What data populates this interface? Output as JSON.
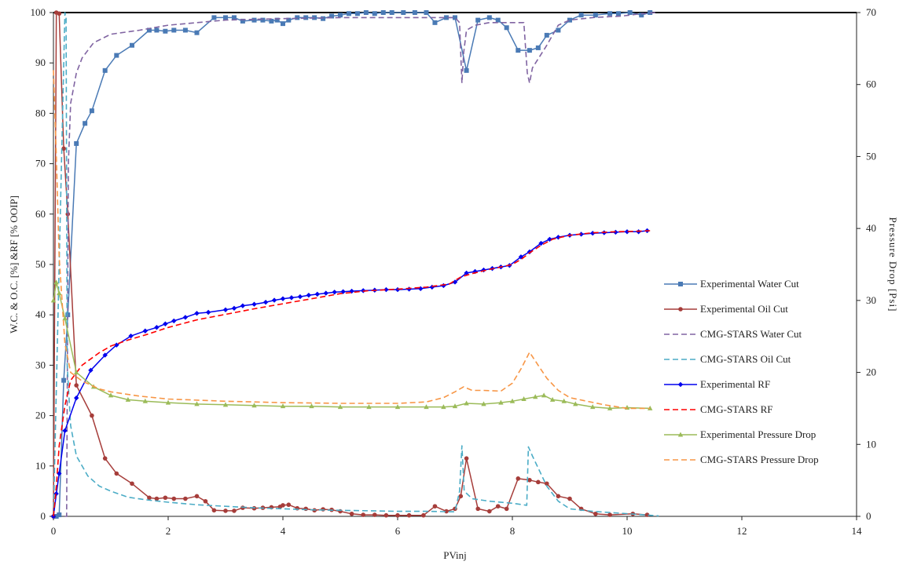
{
  "chart_data": {
    "type": "line",
    "title": "",
    "xlabel": "PVinj",
    "ylabel_left": "W.C. & O.C. [%] &RF [% OOIP]",
    "ylabel_right": "Pressure Drop [Psi]",
    "xlim": [
      0,
      14
    ],
    "ylim_left": [
      0,
      100
    ],
    "ylim_right": [
      0,
      70
    ],
    "x_ticks": [
      "0",
      "2",
      "4",
      "6",
      "8",
      "10",
      "12",
      "14"
    ],
    "y_left_ticks": [
      "0",
      "10",
      "20",
      "30",
      "40",
      "50",
      "60",
      "70",
      "80",
      "90",
      "100"
    ],
    "y_right_ticks": [
      "0",
      "10",
      "20",
      "30",
      "40",
      "50",
      "60",
      "70"
    ],
    "grid": false,
    "legend_position": "right",
    "series": [
      {
        "name": "Experimental Water Cut",
        "axis": "left",
        "style": "solid",
        "marker": "square",
        "color": "#4a7ab5",
        "x": [
          0.05,
          0.1,
          0.18,
          0.25,
          0.4,
          0.55,
          0.67,
          0.9,
          1.1,
          1.37,
          1.67,
          1.8,
          1.95,
          2.1,
          2.3,
          2.5,
          2.8,
          3.0,
          3.15,
          3.3,
          3.5,
          3.65,
          3.8,
          3.9,
          4.0,
          4.1,
          4.25,
          4.4,
          4.55,
          4.7,
          4.85,
          5.0,
          5.15,
          5.3,
          5.45,
          5.6,
          5.75,
          5.9,
          6.1,
          6.3,
          6.5,
          6.65,
          6.85,
          7.0,
          7.2,
          7.4,
          7.6,
          7.75,
          7.9,
          8.1,
          8.3,
          8.45,
          8.6,
          8.8,
          9.0,
          9.2,
          9.45,
          9.7,
          9.85,
          10.05,
          10.25,
          10.4
        ],
        "y": [
          0,
          0.3,
          27,
          40,
          74,
          78,
          80.5,
          88.5,
          91.5,
          93.5,
          96.5,
          96.5,
          96.3,
          96.5,
          96.5,
          96.0,
          99.0,
          99.0,
          99.0,
          98.3,
          98.5,
          98.5,
          98.3,
          98.5,
          97.8,
          98.5,
          99.0,
          99.0,
          99.0,
          98.8,
          99.3,
          99.5,
          99.8,
          99.8,
          100,
          99.8,
          100,
          100,
          100,
          100,
          100,
          98.0,
          99.0,
          99.0,
          88.5,
          98.5,
          99.0,
          98.5,
          97.0,
          92.5,
          92.5,
          93.0,
          95.5,
          96.5,
          98.5,
          99.5,
          99.5,
          99.8,
          99.8,
          100,
          99.5,
          100
        ]
      },
      {
        "name": "Experimental Oil Cut",
        "axis": "left",
        "style": "solid",
        "marker": "circle",
        "color": "#a63d3a",
        "x": [
          0.0,
          0.05,
          0.1,
          0.18,
          0.25,
          0.4,
          0.67,
          0.9,
          1.1,
          1.37,
          1.67,
          1.8,
          1.95,
          2.1,
          2.3,
          2.5,
          2.65,
          2.8,
          3.0,
          3.15,
          3.3,
          3.5,
          3.65,
          3.8,
          3.95,
          4.0,
          4.1,
          4.25,
          4.4,
          4.55,
          4.7,
          4.85,
          5.0,
          5.2,
          5.4,
          5.6,
          5.8,
          6.0,
          6.2,
          6.45,
          6.65,
          6.85,
          7.0,
          7.1,
          7.2,
          7.4,
          7.6,
          7.75,
          7.9,
          8.1,
          8.3,
          8.45,
          8.6,
          8.8,
          9.0,
          9.2,
          9.45,
          9.7,
          10.1,
          10.35
        ],
        "y": [
          0,
          100,
          99.8,
          73,
          60,
          26,
          20,
          11.5,
          8.5,
          6.5,
          3.7,
          3.5,
          3.7,
          3.5,
          3.5,
          4.0,
          3.0,
          1.2,
          1.1,
          1.1,
          1.7,
          1.6,
          1.7,
          1.8,
          1.9,
          2.2,
          2.3,
          1.6,
          1.5,
          1.2,
          1.4,
          1.3,
          1.0,
          0.5,
          0.3,
          0.3,
          0.2,
          0.2,
          0.2,
          0.2,
          2.0,
          1.0,
          1.5,
          4.0,
          11.5,
          1.5,
          1.0,
          2.0,
          1.5,
          7.5,
          7.2,
          6.8,
          6.5,
          4.0,
          3.5,
          1.5,
          0.5,
          0.3,
          0.5,
          0.3
        ]
      },
      {
        "name": "CMG-STARS Water Cut",
        "axis": "left",
        "style": "dashed",
        "marker": "none",
        "color": "#8064a2",
        "x": [
          0.2,
          0.23,
          0.26,
          0.3,
          0.4,
          0.5,
          0.7,
          1.0,
          1.5,
          2.0,
          3.0,
          4.0,
          5.0,
          6.0,
          7.0,
          7.08,
          7.12,
          7.15,
          7.2,
          7.35,
          7.6,
          8.0,
          8.2,
          8.26,
          8.3,
          8.35,
          8.6,
          8.8,
          9.0,
          9.4,
          9.9,
          10.2,
          10.5
        ],
        "y": [
          0,
          0,
          70,
          82,
          88,
          91,
          94,
          95.7,
          96.5,
          97.5,
          98.5,
          98.8,
          99.0,
          99.0,
          99.0,
          98.0,
          86,
          92,
          96.5,
          97.5,
          98.0,
          98.0,
          98.0,
          88,
          86,
          89,
          93.5,
          97.5,
          98.5,
          99.0,
          99.3,
          99.7,
          100
        ]
      },
      {
        "name": "CMG-STARS Oil Cut",
        "axis": "left",
        "style": "dashed",
        "marker": "none",
        "color": "#4bacc6",
        "x": [
          0.0,
          0.2,
          0.22,
          0.24,
          0.3,
          0.4,
          0.6,
          0.8,
          1.0,
          1.3,
          1.6,
          2.0,
          2.5,
          3.0,
          3.5,
          4.0,
          4.5,
          5.0,
          5.5,
          6.0,
          6.5,
          7.0,
          7.08,
          7.12,
          7.16,
          7.3,
          7.6,
          8.0,
          8.25,
          8.28,
          8.35,
          8.6,
          8.8,
          9.0,
          9.4,
          9.9,
          10.3,
          10.55
        ],
        "y": [
          0,
          100,
          99,
          30,
          18,
          12,
          8,
          6,
          5,
          3.8,
          3.3,
          2.8,
          2.3,
          2.0,
          1.7,
          1.5,
          1.3,
          1.2,
          1.1,
          1.0,
          1.0,
          0.9,
          5,
          14,
          5,
          3.5,
          3,
          2.6,
          2.2,
          13.8,
          12,
          6,
          3,
          1.5,
          1.0,
          0.6,
          0.3,
          0.1
        ]
      },
      {
        "name": "Experimental RF",
        "axis": "left",
        "style": "solid",
        "marker": "diamond",
        "color": "#0000ee",
        "x": [
          0,
          0.05,
          0.1,
          0.2,
          0.4,
          0.65,
          0.9,
          1.1,
          1.35,
          1.6,
          1.8,
          1.95,
          2.1,
          2.3,
          2.5,
          2.7,
          3.0,
          3.15,
          3.3,
          3.5,
          3.7,
          3.85,
          4.0,
          4.15,
          4.3,
          4.45,
          4.6,
          4.75,
          4.9,
          5.05,
          5.2,
          5.4,
          5.6,
          5.8,
          6.0,
          6.2,
          6.4,
          6.6,
          6.8,
          7.0,
          7.2,
          7.35,
          7.5,
          7.65,
          7.8,
          7.95,
          8.15,
          8.3,
          8.5,
          8.65,
          8.8,
          9.0,
          9.2,
          9.4,
          9.6,
          9.8,
          10.0,
          10.2,
          10.35
        ],
        "y": [
          0,
          4.5,
          8.5,
          17,
          23.5,
          29,
          32,
          34,
          35.8,
          36.8,
          37.5,
          38.2,
          38.8,
          39.5,
          40.3,
          40.5,
          41.0,
          41.3,
          41.8,
          42.1,
          42.5,
          42.9,
          43.2,
          43.4,
          43.6,
          43.9,
          44.1,
          44.3,
          44.5,
          44.6,
          44.7,
          44.8,
          44.9,
          45.0,
          45.0,
          45.1,
          45.2,
          45.5,
          45.8,
          46.5,
          48.3,
          48.6,
          48.9,
          49.2,
          49.5,
          49.8,
          51.5,
          52.5,
          54.2,
          55,
          55.4,
          55.8,
          56.0,
          56.2,
          56.3,
          56.4,
          56.5,
          56.5,
          56.7
        ]
      },
      {
        "name": "CMG-STARS RF",
        "axis": "left",
        "style": "dashed",
        "marker": "none",
        "color": "#ff0000",
        "x": [
          0,
          0.05,
          0.1,
          0.2,
          0.3,
          0.5,
          0.8,
          1.0,
          1.3,
          1.6,
          2.0,
          2.5,
          3.0,
          3.5,
          4.0,
          4.5,
          5.0,
          5.5,
          6.0,
          6.5,
          6.9,
          7.0,
          7.1,
          7.3,
          7.6,
          8.0,
          8.15,
          8.3,
          8.5,
          8.7,
          9.0,
          9.4,
          9.8,
          10.2,
          10.4
        ],
        "y": [
          0,
          6,
          14,
          22,
          27,
          30,
          32.5,
          33.8,
          35.0,
          36.0,
          37.5,
          39.0,
          40.1,
          41.2,
          42.2,
          43.2,
          44.2,
          44.8,
          45.1,
          45.5,
          46.1,
          46.8,
          47.5,
          48.2,
          49.0,
          50.0,
          51.0,
          52.3,
          53.8,
          55.0,
          55.8,
          56.3,
          56.5,
          56.6,
          56.7
        ]
      },
      {
        "name": "Experimental Pressure Drop",
        "axis": "right",
        "style": "solid",
        "marker": "triangle",
        "color": "#9bbb59",
        "x": [
          0,
          0.05,
          0.1,
          0.2,
          0.4,
          0.7,
          1.0,
          1.3,
          1.6,
          2.0,
          2.5,
          3.0,
          3.5,
          4.0,
          4.5,
          5.0,
          5.5,
          6.0,
          6.5,
          6.8,
          7.0,
          7.2,
          7.5,
          7.8,
          8.0,
          8.2,
          8.4,
          8.55,
          8.7,
          8.9,
          9.1,
          9.4,
          9.7,
          10.0,
          10.4
        ],
        "y": [
          30,
          32.5,
          31,
          27.5,
          20,
          18.0,
          16.8,
          16.2,
          16.0,
          15.8,
          15.6,
          15.5,
          15.4,
          15.3,
          15.3,
          15.2,
          15.2,
          15.2,
          15.2,
          15.2,
          15.3,
          15.7,
          15.6,
          15.8,
          16.0,
          16.3,
          16.6,
          16.8,
          16.2,
          16.0,
          15.6,
          15.2,
          15.0,
          15.1,
          15.0
        ]
      },
      {
        "name": "CMG-STARS Pressure Drop",
        "axis": "right",
        "style": "dashed",
        "marker": "none",
        "color": "#f79646",
        "x": [
          0,
          0.05,
          0.1,
          0.2,
          0.3,
          0.5,
          0.8,
          1.0,
          1.5,
          2.0,
          3.0,
          4.0,
          5.0,
          6.0,
          6.5,
          6.8,
          7.0,
          7.15,
          7.3,
          7.5,
          7.8,
          8.0,
          8.15,
          8.3,
          8.45,
          8.6,
          8.8,
          9.0,
          9.3,
          9.6,
          10.0,
          10.4
        ],
        "y": [
          62,
          50,
          36,
          24,
          20,
          18.8,
          17.7,
          17.3,
          16.7,
          16.3,
          16.0,
          15.8,
          15.7,
          15.7,
          15.9,
          16.5,
          17.3,
          18.0,
          17.5,
          17.5,
          17.4,
          18.5,
          20.5,
          22.8,
          21,
          19.2,
          17.5,
          16.5,
          16.0,
          15.5,
          15.0,
          15.0
        ]
      }
    ]
  }
}
